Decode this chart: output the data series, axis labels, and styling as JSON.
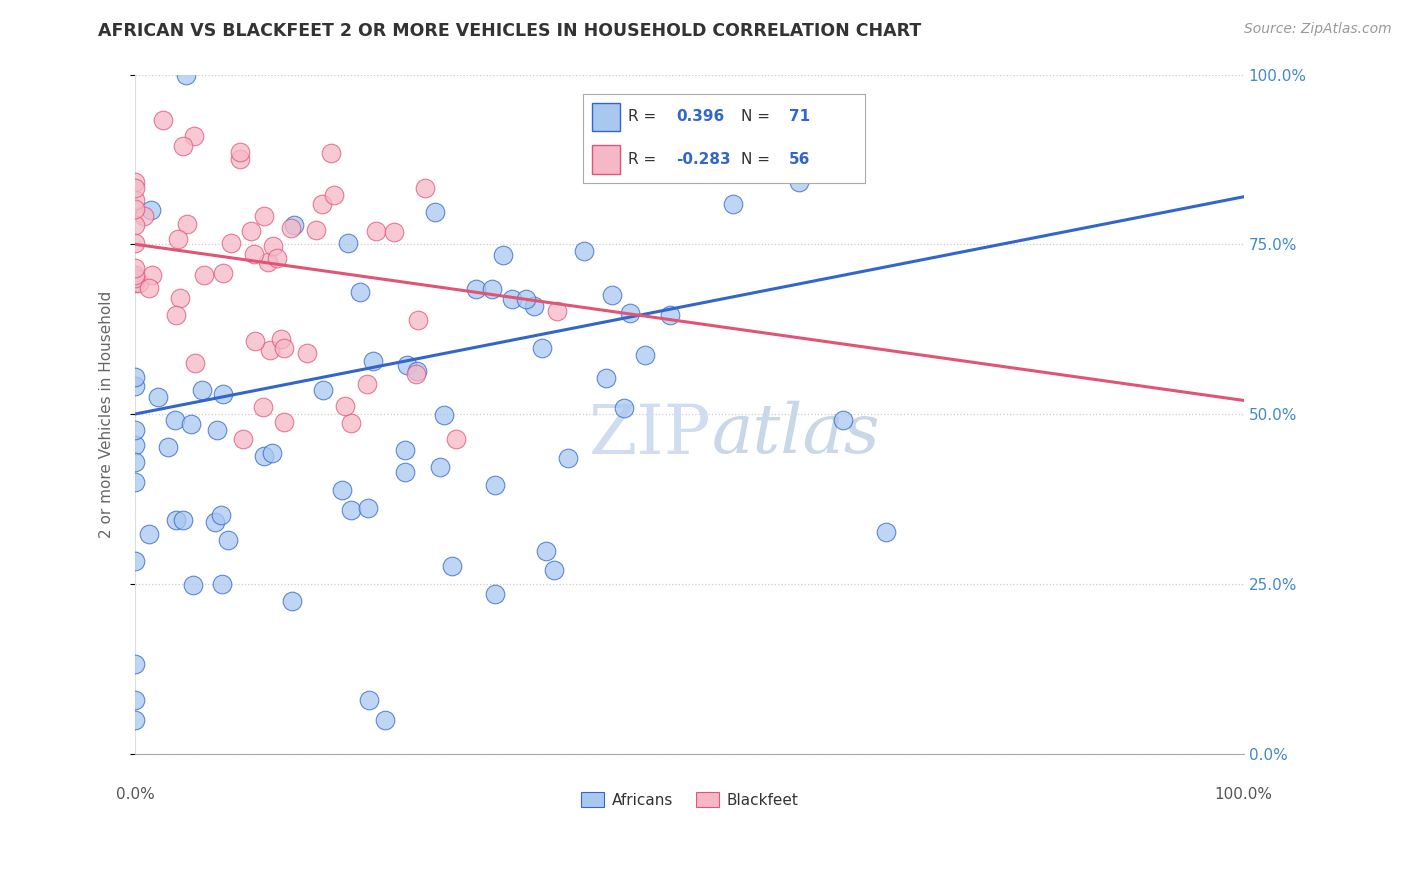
{
  "title": "AFRICAN VS BLACKFEET 2 OR MORE VEHICLES IN HOUSEHOLD CORRELATION CHART",
  "source": "Source: ZipAtlas.com",
  "ylabel": "2 or more Vehicles in Household",
  "yticks": [
    "0.0%",
    "25.0%",
    "50.0%",
    "75.0%",
    "100.0%"
  ],
  "ytick_vals": [
    0.0,
    25.0,
    50.0,
    75.0,
    100.0
  ],
  "xlim": [
    0.0,
    100.0
  ],
  "ylim": [
    0.0,
    100.0
  ],
  "legend_r_african": "0.396",
  "legend_n_african": "71",
  "legend_r_blackfeet": "-0.283",
  "legend_n_blackfeet": "56",
  "african_color": "#a8c8f0",
  "blackfeet_color": "#f5b8c8",
  "african_line_color": "#3366cc",
  "blackfeet_line_color": "#e05575",
  "african_edge_color": "#3366cc",
  "blackfeet_edge_color": "#e05575",
  "watermark_color": "#d0ddf0",
  "grid_color": "#cccccc",
  "ytick_color": "#4488cc",
  "title_color": "#333333",
  "source_color": "#999999",
  "ylabel_color": "#666666"
}
